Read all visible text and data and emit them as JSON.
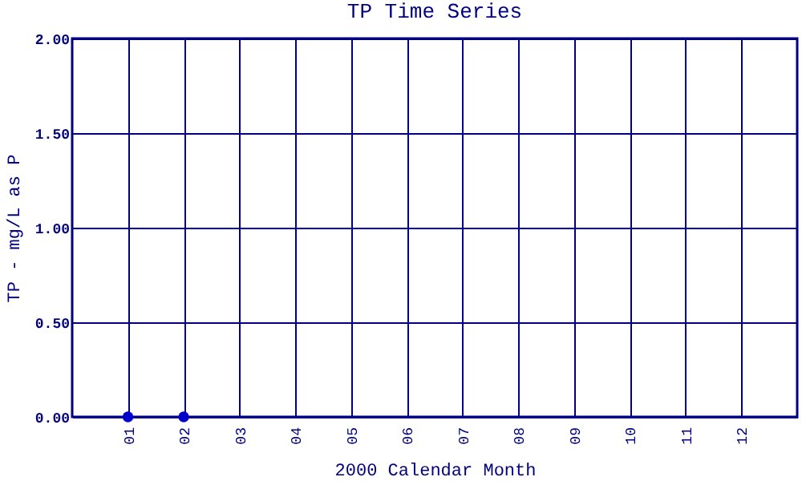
{
  "chart_data": {
    "type": "scatter",
    "title": "TP Time Series",
    "xlabel": "2000 Calendar Month",
    "ylabel": "TP - mg/L as P",
    "categories": [
      "01",
      "02",
      "03",
      "04",
      "05",
      "06",
      "07",
      "08",
      "09",
      "10",
      "11",
      "12"
    ],
    "series": [
      {
        "color": "#0000cc",
        "values": [
          0,
          0,
          null,
          null,
          null,
          null,
          null,
          null,
          null,
          null,
          null,
          null
        ]
      }
    ],
    "ylim": [
      0,
      2
    ],
    "yticks": [
      {
        "value": 0,
        "label": "0.00"
      },
      {
        "value": 0.5,
        "label": "0.50"
      },
      {
        "value": 1,
        "label": "1.00"
      },
      {
        "value": 1.5,
        "label": "1.50"
      },
      {
        "value": 2,
        "label": "2.00"
      }
    ],
    "grid": true,
    "marker": "circle",
    "legend": false
  }
}
